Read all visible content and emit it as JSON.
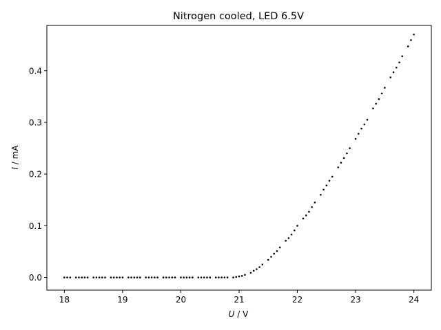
{
  "chart_data": {
    "type": "scatter",
    "title": "Nitrogen cooled, LED 6.5V",
    "xlabel_var": "U",
    "xlabel_unit": " / V",
    "ylabel_var": "I",
    "ylabel_unit": " / mA",
    "xlim": [
      17.7,
      24.3
    ],
    "ylim": [
      -0.0245,
      0.4875
    ],
    "xticks": [
      18,
      19,
      20,
      21,
      22,
      23,
      24
    ],
    "xtick_labels": [
      "18",
      "19",
      "20",
      "21",
      "22",
      "23",
      "24"
    ],
    "yticks": [
      0.0,
      0.1,
      0.2,
      0.3,
      0.4
    ],
    "ytick_labels": [
      "0.0",
      "0.1",
      "0.2",
      "0.3",
      "0.4"
    ],
    "grid": false,
    "marker_color": "#000000",
    "series": [
      {
        "x": [
          18.0,
          18.05,
          18.1,
          18.2,
          18.25,
          18.3,
          18.35,
          18.4,
          18.5,
          18.55,
          18.6,
          18.65,
          18.7,
          18.8,
          18.85,
          18.9,
          18.95,
          19.0,
          19.1,
          19.15,
          19.2,
          19.25,
          19.3,
          19.4,
          19.45,
          19.5,
          19.55,
          19.6,
          19.7,
          19.75,
          19.8,
          19.85,
          19.9,
          20.0,
          20.05,
          20.1,
          20.15,
          20.2,
          20.3,
          20.35,
          20.4,
          20.45,
          20.5,
          20.6,
          20.65,
          20.7,
          20.75,
          20.8,
          20.9,
          20.95,
          21.0,
          21.05,
          21.1,
          21.2,
          21.25,
          21.3,
          21.35,
          21.4,
          21.5,
          21.55,
          21.6,
          21.65,
          21.7,
          21.8,
          21.85,
          21.9,
          21.95,
          22.0,
          22.1,
          22.15,
          22.2,
          22.25,
          22.3,
          22.4,
          22.45,
          22.5,
          22.55,
          22.6,
          22.7,
          22.75,
          22.8,
          22.85,
          22.9,
          23.0,
          23.05,
          23.1,
          23.15,
          23.2,
          23.3,
          23.35,
          23.4,
          23.45,
          23.5,
          23.6,
          23.65,
          23.7,
          23.75,
          23.8,
          23.9,
          23.95,
          24.0
        ],
        "y": [
          0.0,
          0.0,
          0.0,
          0.0,
          0.0,
          0.0,
          0.0,
          0.0,
          0.0,
          0.0,
          0.0,
          0.0,
          0.0,
          0.0,
          0.0,
          0.0,
          0.0,
          0.0,
          0.0,
          0.0,
          0.0,
          0.0,
          0.0,
          0.0,
          0.0,
          0.0,
          0.0,
          0.0,
          0.0,
          0.0,
          0.0,
          0.0,
          0.0,
          0.0,
          0.0,
          0.0,
          0.0,
          0.0,
          0.0,
          0.0,
          0.0,
          0.0,
          0.0,
          0.0,
          0.0,
          0.0,
          0.0,
          0.0,
          0.0,
          0.001,
          0.002,
          0.003,
          0.005,
          0.009,
          0.013,
          0.016,
          0.02,
          0.025,
          0.034,
          0.04,
          0.046,
          0.051,
          0.058,
          0.071,
          0.076,
          0.083,
          0.091,
          0.1,
          0.114,
          0.12,
          0.127,
          0.136,
          0.145,
          0.16,
          0.17,
          0.178,
          0.187,
          0.195,
          0.213,
          0.222,
          0.231,
          0.24,
          0.25,
          0.268,
          0.278,
          0.288,
          0.296,
          0.305,
          0.327,
          0.336,
          0.345,
          0.356,
          0.367,
          0.387,
          0.397,
          0.406,
          0.416,
          0.428,
          0.447,
          0.459,
          0.47
        ]
      }
    ]
  }
}
